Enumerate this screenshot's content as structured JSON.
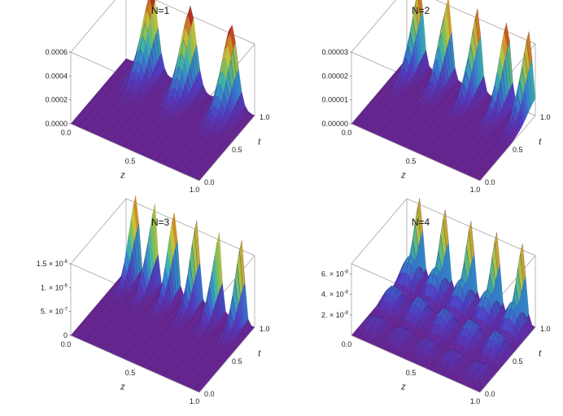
{
  "figure": {
    "description_free": true
  },
  "chart_data": [
    {
      "type": "surface3d",
      "title": "N=1",
      "xlabel": "z",
      "ylabel": "t",
      "x_range": [
        0.0,
        1.0
      ],
      "t_range": [
        0.0,
        1.0
      ],
      "x_ticks": [
        "0.0",
        "0.5",
        "1.0"
      ],
      "t_ticks": [
        "0.0",
        "0.5",
        "1.0"
      ],
      "z_ticks": [
        "0.0000",
        "0.0002",
        "0.0004",
        "0.0006"
      ],
      "z_tick_values": [
        0,
        0.0002,
        0.0004,
        0.0006
      ],
      "z_max": 0.0006,
      "peak_value": 0.00068,
      "peaks_z": [
        0.2,
        0.5,
        0.82
      ],
      "peak_t_center": 1.0,
      "peak_t_width": 0.28,
      "peak_z_width": 0.065,
      "ripple": 0.0
    },
    {
      "type": "surface3d",
      "title": "N=2",
      "xlabel": "z",
      "ylabel": "t",
      "x_range": [
        0.0,
        1.0
      ],
      "t_range": [
        0.0,
        1.0
      ],
      "x_ticks": [
        "0.0",
        "0.5",
        "1.0"
      ],
      "t_ticks": [
        "0.0",
        "0.5",
        "1.0"
      ],
      "z_ticks": [
        "0.00000",
        "0.00001",
        "0.00002",
        "0.00003"
      ],
      "z_tick_values": [
        0,
        1e-05,
        2e-05,
        3e-05
      ],
      "z_max": 3e-05,
      "peak_value": 3.4e-05,
      "peaks_z": [
        0.1,
        0.32,
        0.55,
        0.78,
        0.95
      ],
      "peak_t_center": 1.0,
      "peak_t_width": 0.26,
      "peak_z_width": 0.04,
      "ripple": 0.0
    },
    {
      "type": "surface3d",
      "title": "N=3",
      "xlabel": "z",
      "ylabel": "t",
      "x_range": [
        0.0,
        1.0
      ],
      "t_range": [
        0.0,
        1.0
      ],
      "x_ticks": [
        "0.0",
        "0.5",
        "1.0"
      ],
      "t_ticks": [
        "0.0",
        "0.5",
        "1.0"
      ],
      "z_ticks": [
        {
          "m": "0",
          "e": ""
        },
        {
          "m": "5. × 10",
          "e": "-7"
        },
        {
          "m": "1. × 10",
          "e": "-6"
        },
        {
          "m": "1.5 × 10",
          "e": "-6"
        }
      ],
      "z_tick_values": [
        0,
        5e-07,
        1e-06,
        1.5e-06
      ],
      "z_max": 1.5e-06,
      "peak_value": 1.7e-06,
      "peaks_z": [
        0.08,
        0.22,
        0.38,
        0.55,
        0.72,
        0.9
      ],
      "peak_t_center": 1.0,
      "peak_t_width": 0.22,
      "peak_z_width": 0.03,
      "ripple": 0.0
    },
    {
      "type": "surface3d",
      "title": "N=4",
      "xlabel": "z",
      "ylabel": "t",
      "x_range": [
        0.0,
        1.0
      ],
      "t_range": [
        0.0,
        1.0
      ],
      "x_ticks": [
        "0.0",
        "0.5",
        "1.0"
      ],
      "t_ticks": [
        "0.0",
        "0.5",
        "1.0"
      ],
      "z_ticks": [
        {
          "m": "2. × 10",
          "e": "-8"
        },
        {
          "m": "4. × 10",
          "e": "-8"
        },
        {
          "m": "6. × 10",
          "e": "-8"
        }
      ],
      "z_tick_values": [
        2e-08,
        4e-08,
        6e-08
      ],
      "z_max": 7e-08,
      "peak_value": 7.6e-08,
      "peaks_z": [
        0.1,
        0.3,
        0.5,
        0.7,
        0.9
      ],
      "peak_t_center": 1.0,
      "peak_t_width": 0.2,
      "peak_z_width": 0.035,
      "ripple": 0.45
    }
  ]
}
